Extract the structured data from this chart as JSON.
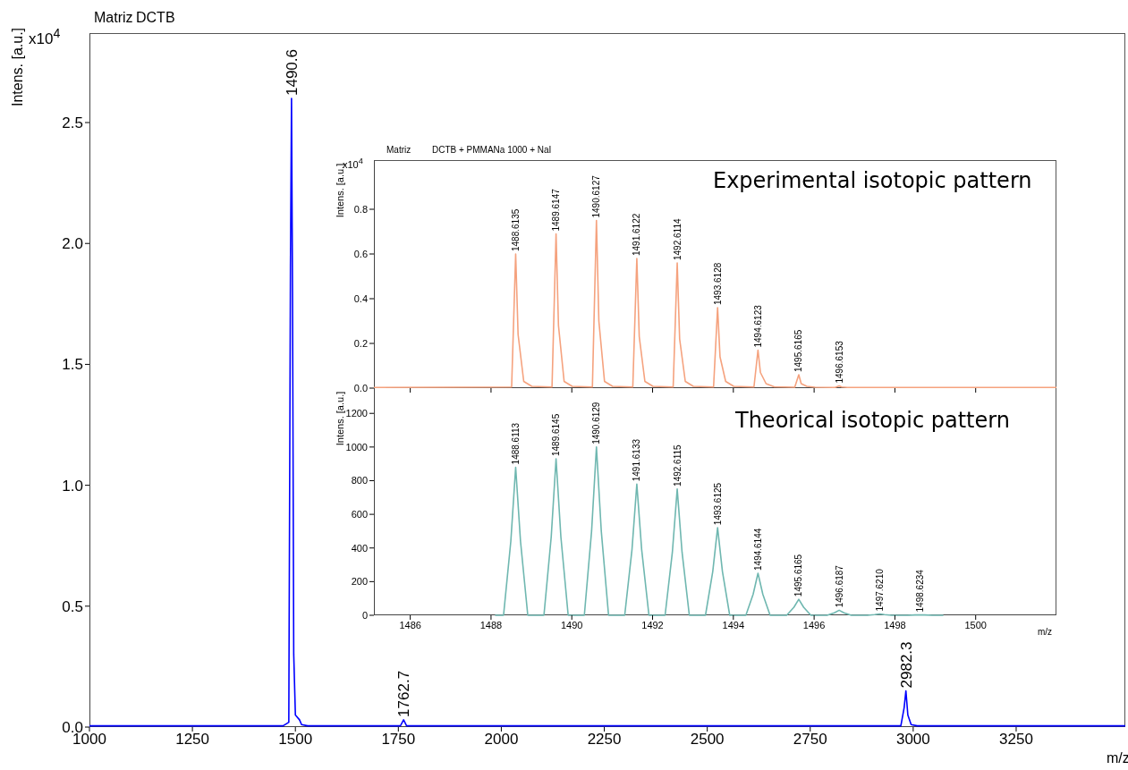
{
  "chart_data": [
    {
      "type": "line",
      "title": "Matriz",
      "subtitle": "DCTB",
      "xlabel": "m/z",
      "ylabel": "Intens. [a.u.]",
      "marker": "none",
      "x": [
        1000,
        1470,
        1484,
        1488,
        1490.6,
        1493,
        1496,
        1500,
        1510,
        1515,
        1530,
        1755,
        1762.7,
        1770,
        2970,
        2978,
        2982.3,
        2987,
        2995,
        3010,
        3515
      ],
      "series": [
        {
          "color": "#0000ff",
          "values": [
            0.005,
            0.005,
            0.02,
            1.9,
            2.6,
            1.8,
            0.3,
            0.05,
            0.03,
            0.01,
            0.005,
            0.005,
            0.03,
            0.005,
            0.005,
            0.08,
            0.15,
            0.05,
            0.01,
            0.005,
            0.005
          ]
        }
      ],
      "xlim": [
        1000,
        3515
      ],
      "xticks": [
        1000,
        1250,
        1500,
        1750,
        2000,
        2250,
        2500,
        2750,
        3000,
        3250
      ],
      "ylim": [
        0,
        2.87
      ],
      "yticks": [
        {
          "value": 0,
          "label": "0.0"
        },
        0.5,
        {
          "value": 1,
          "label": "1.0"
        },
        1.5,
        {
          "value": 2,
          "label": "2.0"
        },
        2.5
      ],
      "annotations": [
        "x10$^{4}$",
        {
          "text": "1490.6",
          "x": 1490.6,
          "y": 2.6
        },
        {
          "text": "1762.7",
          "x": 1762.7,
          "y": 0.03
        },
        {
          "text": "2982.3",
          "x": 2982.3,
          "y": 0.15
        }
      ]
    },
    {
      "type": "line",
      "title": "Matriz",
      "subtitle": "DCTB + PMMANa 1000 + NaI",
      "ylabel": "Intens. [a.u.]",
      "marker": "none",
      "tick_labels": "y",
      "x": [
        1485.1,
        1488.51,
        1488.61,
        1488.67,
        1488.81,
        1489.01,
        1489.51,
        1489.61,
        1489.67,
        1489.81,
        1490.01,
        1490.51,
        1490.61,
        1490.67,
        1490.81,
        1491.01,
        1491.51,
        1491.61,
        1491.67,
        1491.81,
        1492.01,
        1492.51,
        1492.61,
        1492.67,
        1492.81,
        1493.01,
        1493.51,
        1493.61,
        1493.67,
        1493.81,
        1494.01,
        1494.51,
        1494.61,
        1494.67,
        1494.81,
        1495.01,
        1495.52,
        1495.62,
        1495.68,
        1495.82,
        1496.02,
        1496.52,
        1496.62,
        1496.68,
        1496.82,
        1497.02,
        1502
      ],
      "series": [
        {
          "color": "#f5a27e",
          "values": [
            0.003,
            0.005,
            0.6,
            0.24,
            0.03,
            0.008,
            0.005,
            0.69,
            0.28,
            0.03,
            0.008,
            0.005,
            0.75,
            0.3,
            0.03,
            0.008,
            0.005,
            0.58,
            0.23,
            0.03,
            0.008,
            0.005,
            0.56,
            0.22,
            0.03,
            0.008,
            0.005,
            0.36,
            0.14,
            0.03,
            0.008,
            0.005,
            0.17,
            0.07,
            0.02,
            0.006,
            0.004,
            0.06,
            0.02,
            0.008,
            0.004,
            0.003,
            0.01,
            0.005,
            0.003,
            0.003,
            0.003
          ]
        }
      ],
      "xlim": [
        1485.1,
        1502
      ],
      "xticks": [
        1486,
        1488,
        1490,
        1492,
        1494,
        1496,
        1498,
        1500
      ],
      "ylim": [
        0,
        1.02
      ],
      "yticks": [
        {
          "value": 0,
          "label": "0.0"
        },
        0.2,
        0.4,
        0.6,
        0.8
      ],
      "annotations": [
        "x10$^{4}$",
        "Experimental isotopic pattern",
        {
          "text": "1488.6135",
          "x": 1488.61,
          "y": 0.6
        },
        {
          "text": "1489.6147",
          "x": 1489.61,
          "y": 0.69
        },
        {
          "text": "1490.6127",
          "x": 1490.61,
          "y": 0.75
        },
        {
          "text": "1491.6122",
          "x": 1491.61,
          "y": 0.58
        },
        {
          "text": "1492.6114",
          "x": 1492.61,
          "y": 0.56
        },
        {
          "text": "1493.6128",
          "x": 1493.61,
          "y": 0.36
        },
        {
          "text": "1494.6123",
          "x": 1494.61,
          "y": 0.17
        },
        {
          "text": "1495.6165",
          "x": 1495.62,
          "y": 0.06
        },
        {
          "text": "1496.6153",
          "x": 1496.62,
          "y": 0.01
        }
      ]
    },
    {
      "type": "line",
      "xlabel": "m/z",
      "ylabel": "Intens. [a.u.]",
      "marker": "none",
      "x": [
        1488.1,
        1488.31,
        1488.49,
        1488.61,
        1488.73,
        1488.91,
        1489.31,
        1489.49,
        1489.61,
        1489.73,
        1489.91,
        1490.31,
        1490.49,
        1490.61,
        1490.73,
        1490.91,
        1491.31,
        1491.49,
        1491.61,
        1491.73,
        1491.91,
        1492.31,
        1492.49,
        1492.61,
        1492.73,
        1492.91,
        1493.31,
        1493.49,
        1493.61,
        1493.73,
        1493.91,
        1494.31,
        1494.49,
        1494.61,
        1494.73,
        1494.91,
        1495.32,
        1495.5,
        1495.62,
        1495.74,
        1495.92,
        1496.32,
        1496.5,
        1496.62,
        1496.74,
        1496.92,
        1497.32,
        1497.5,
        1497.62,
        1497.74,
        1497.92,
        1498.32,
        1498.5,
        1498.62,
        1498.74,
        1498.92,
        1499.2
      ],
      "series": [
        {
          "color": "#6fb7b0",
          "values": [
            0,
            0,
            440,
            880,
            440,
            0,
            0,
            465,
            930,
            465,
            0,
            0,
            500,
            1000,
            500,
            0,
            0,
            390,
            780,
            390,
            0,
            0,
            375,
            750,
            375,
            0,
            0,
            260,
            520,
            260,
            0,
            0,
            125,
            250,
            125,
            0,
            0,
            48,
            95,
            48,
            0,
            0,
            15,
            30,
            15,
            0,
            0,
            4,
            8,
            4,
            0,
            0,
            2,
            3,
            2,
            0,
            0
          ]
        }
      ],
      "xlim": [
        1485.1,
        1502
      ],
      "xticks": [
        1486,
        1488,
        1490,
        1492,
        1494,
        1496,
        1498,
        1500
      ],
      "ylim": [
        0,
        1350
      ],
      "yticks": [
        0,
        200,
        400,
        600,
        800,
        1000,
        1200
      ],
      "annotations": [
        "Theorical isotopic pattern",
        {
          "text": "1488.6113",
          "x": 1488.61,
          "y": 880
        },
        {
          "text": "1489.6145",
          "x": 1489.61,
          "y": 930
        },
        {
          "text": "1490.6129",
          "x": 1490.61,
          "y": 1000
        },
        {
          "text": "1491.6133",
          "x": 1491.61,
          "y": 780
        },
        {
          "text": "1492.6115",
          "x": 1492.61,
          "y": 750
        },
        {
          "text": "1493.6125",
          "x": 1493.61,
          "y": 520
        },
        {
          "text": "1494.6144",
          "x": 1494.61,
          "y": 250
        },
        {
          "text": "1495.6165",
          "x": 1495.62,
          "y": 95
        },
        {
          "text": "1496.6187",
          "x": 1496.62,
          "y": 30
        },
        {
          "text": "1497.6210",
          "x": 1497.62,
          "y": 8
        },
        {
          "text": "1498.6234",
          "x": 1498.62,
          "y": 3
        }
      ]
    }
  ]
}
